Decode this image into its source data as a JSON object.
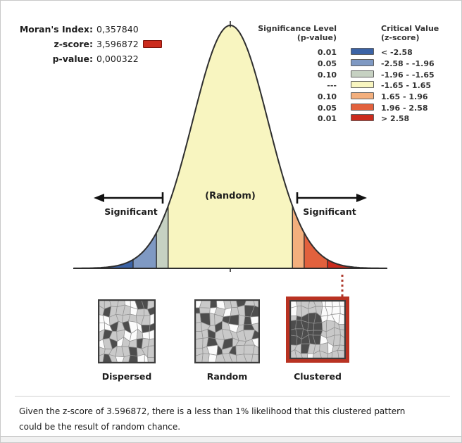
{
  "stats": {
    "rows": [
      {
        "label": "Moran's Index:",
        "value": "0,357840",
        "swatch": false
      },
      {
        "label": "z-score:",
        "value": "3,596872",
        "swatch": true
      },
      {
        "label": "p-value:",
        "value": "0,000322",
        "swatch": false
      }
    ]
  },
  "curve_labels": {
    "random": "(Random)",
    "significant_left": "Significant",
    "significant_right": "Significant"
  },
  "legend": {
    "left_header_line1": "Significance Level",
    "left_header_line2": "(p-value)",
    "right_header_line1": "Critical Value",
    "right_header_line2": "(z-score)",
    "rows": [
      {
        "p": "0.01",
        "color": "#3b63a6",
        "z": "< -2.58"
      },
      {
        "p": "0.05",
        "color": "#7f99c3",
        "z": "-2.58 - -1.96"
      },
      {
        "p": "0.10",
        "color": "#c6d1c2",
        "z": "-1.96 - -1.65"
      },
      {
        "p": "---",
        "color": "#f8f5c0",
        "z": "-1.65 - 1.65"
      },
      {
        "p": "0.10",
        "color": "#f3af7d",
        "z": "1.65 - 1.96"
      },
      {
        "p": "0.05",
        "color": "#e2613d",
        "z": "1.96 - 2.58"
      },
      {
        "p": "0.01",
        "color": "#cb2b1d",
        "z": "> 2.58"
      }
    ]
  },
  "thumbnails": [
    {
      "label": "Dispersed",
      "pattern": "dispersed",
      "highlighted": false
    },
    {
      "label": "Random",
      "pattern": "random",
      "highlighted": false
    },
    {
      "label": "Clustered",
      "pattern": "clustered",
      "highlighted": true
    }
  ],
  "footer": {
    "line1": "Given the z-score of 3.596872, there is a less than 1% likelihood that this clustered pattern",
    "line2": "could be the result of random chance."
  },
  "colors": {
    "highlight_red": "#b93222",
    "swatch_red": "#cb2b1d",
    "curve_outline": "#2e2e2e"
  },
  "chart_data": {
    "type": "area",
    "title": "Spatial Autocorrelation (Moran's I) significance bell curve",
    "distribution": "standard normal distribution of z-scores",
    "statistics": {
      "morans_index": "0,357840",
      "z_score": "3,596872",
      "p_value": "0,000322"
    },
    "bands": [
      {
        "z_min": null,
        "z_max": -2.58,
        "p_value": "0.01",
        "color": "#3b63a6",
        "label": "< -2.58"
      },
      {
        "z_min": -2.58,
        "z_max": -1.96,
        "p_value": "0.05",
        "color": "#7f99c3",
        "label": "-2.58 - -1.96"
      },
      {
        "z_min": -1.96,
        "z_max": -1.65,
        "p_value": "0.10",
        "color": "#c6d1c2",
        "label": "-1.96 - -1.65"
      },
      {
        "z_min": -1.65,
        "z_max": 1.65,
        "p_value": "---",
        "color": "#f8f5c0",
        "label": "-1.65 - 1.65"
      },
      {
        "z_min": 1.65,
        "z_max": 1.96,
        "p_value": "0.10",
        "color": "#f3af7d",
        "label": "1.65 - 1.96"
      },
      {
        "z_min": 1.96,
        "z_max": 2.58,
        "p_value": "0.05",
        "color": "#e2613d",
        "label": "1.96 - 2.58"
      },
      {
        "z_min": 2.58,
        "z_max": null,
        "p_value": "0.01",
        "color": "#cb2b1d",
        "label": "> 2.58"
      }
    ],
    "annotations": [
      "Significant",
      "(Random)",
      "Significant"
    ],
    "observed_z_marker": 3.596872,
    "pattern_examples": [
      "Dispersed",
      "Random",
      "Clustered"
    ],
    "highlighted_pattern": "Clustered"
  }
}
